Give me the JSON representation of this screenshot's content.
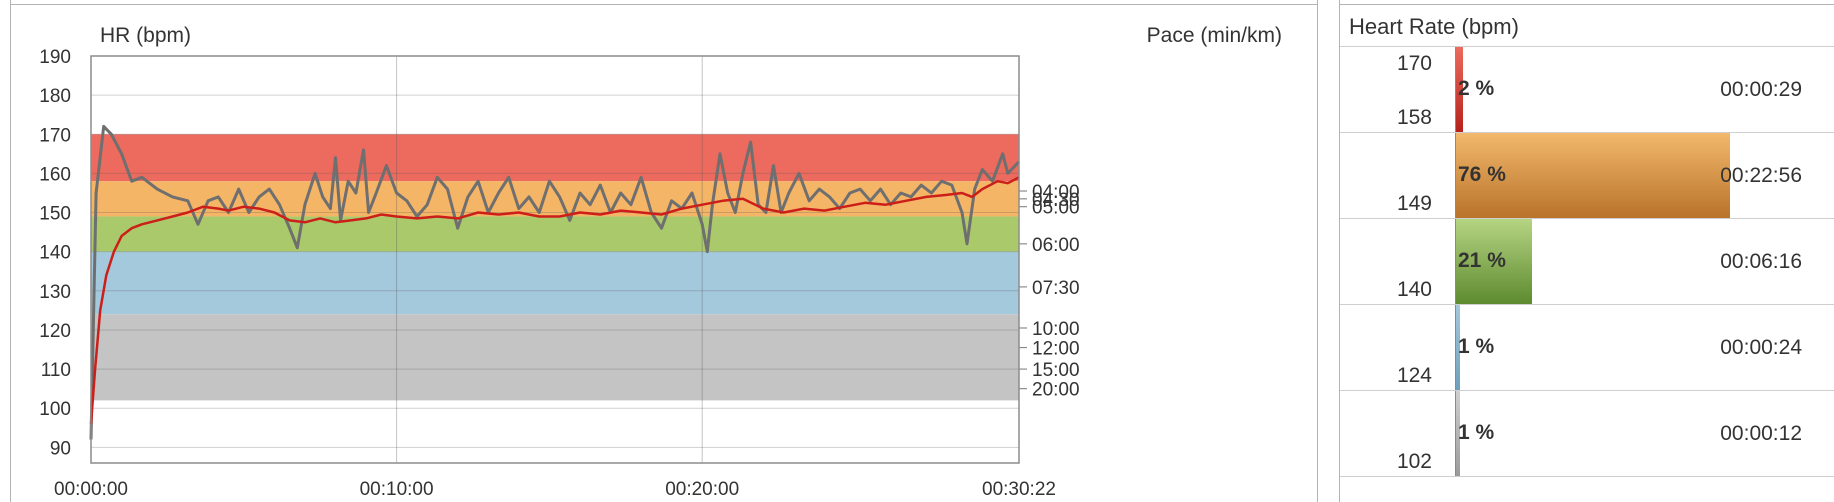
{
  "chart_data": {
    "type": "line",
    "left_axis_label": "HR (bpm)",
    "right_axis_label": "Pace (min/km)",
    "y_ticks": [
      190,
      180,
      170,
      160,
      150,
      140,
      130,
      120,
      110,
      100,
      90
    ],
    "ylim": [
      86,
      190
    ],
    "x_ticks": [
      "00:00:00",
      "00:10:00",
      "00:20:00",
      "00:30:22"
    ],
    "x_tick_seconds": [
      0,
      600,
      1200,
      1822
    ],
    "xlim_seconds": [
      0,
      1822
    ],
    "pace_ticks": [
      {
        "label": "04:00",
        "hr": 155.5
      },
      {
        "label": "04:30",
        "hr": 153.5
      },
      {
        "label": "05:00",
        "hr": 151.5
      },
      {
        "label": "06:00",
        "hr": 142.0
      },
      {
        "label": "07:30",
        "hr": 131.0
      },
      {
        "label": "10:00",
        "hr": 120.5
      },
      {
        "label": "12:00",
        "hr": 115.5
      },
      {
        "label": "15:00",
        "hr": 110.0
      },
      {
        "label": "20:00",
        "hr": 105.0
      }
    ],
    "zones": [
      {
        "from": 158,
        "to": 170,
        "color": "#ec6a5e"
      },
      {
        "from": 149,
        "to": 158,
        "color": "#f5b566"
      },
      {
        "from": 140,
        "to": 149,
        "color": "#a9c96a"
      },
      {
        "from": 124,
        "to": 140,
        "color": "#a4c8dc"
      },
      {
        "from": 102,
        "to": 124,
        "color": "#c4c4c4"
      }
    ],
    "series": [
      {
        "color": "#6f6f6f",
        "points": [
          [
            0,
            92
          ],
          [
            10,
            155
          ],
          [
            25,
            172
          ],
          [
            40,
            170
          ],
          [
            60,
            165
          ],
          [
            80,
            158
          ],
          [
            100,
            159
          ],
          [
            130,
            156
          ],
          [
            160,
            154
          ],
          [
            190,
            153
          ],
          [
            210,
            147
          ],
          [
            230,
            153
          ],
          [
            250,
            154
          ],
          [
            270,
            150
          ],
          [
            290,
            156
          ],
          [
            310,
            150
          ],
          [
            330,
            154
          ],
          [
            350,
            156
          ],
          [
            370,
            152
          ],
          [
            390,
            146
          ],
          [
            405,
            141
          ],
          [
            420,
            152
          ],
          [
            440,
            160
          ],
          [
            455,
            154
          ],
          [
            470,
            151
          ],
          [
            480,
            164
          ],
          [
            490,
            148
          ],
          [
            505,
            158
          ],
          [
            520,
            155
          ],
          [
            535,
            166
          ],
          [
            545,
            150
          ],
          [
            560,
            155
          ],
          [
            580,
            162
          ],
          [
            600,
            155
          ],
          [
            620,
            153
          ],
          [
            640,
            149
          ],
          [
            660,
            152
          ],
          [
            680,
            159
          ],
          [
            700,
            156
          ],
          [
            720,
            146
          ],
          [
            740,
            154
          ],
          [
            760,
            158
          ],
          [
            780,
            150
          ],
          [
            800,
            155
          ],
          [
            820,
            159
          ],
          [
            840,
            151
          ],
          [
            860,
            154
          ],
          [
            880,
            150
          ],
          [
            900,
            158
          ],
          [
            920,
            154
          ],
          [
            940,
            148
          ],
          [
            960,
            155
          ],
          [
            980,
            152
          ],
          [
            1000,
            157
          ],
          [
            1020,
            150
          ],
          [
            1040,
            155
          ],
          [
            1060,
            152
          ],
          [
            1080,
            159
          ],
          [
            1100,
            150
          ],
          [
            1120,
            146
          ],
          [
            1140,
            153
          ],
          [
            1160,
            151
          ],
          [
            1180,
            155
          ],
          [
            1200,
            147
          ],
          [
            1210,
            140
          ],
          [
            1220,
            152
          ],
          [
            1235,
            165
          ],
          [
            1250,
            155
          ],
          [
            1265,
            150
          ],
          [
            1280,
            160
          ],
          [
            1295,
            168
          ],
          [
            1310,
            152
          ],
          [
            1325,
            150
          ],
          [
            1340,
            162
          ],
          [
            1355,
            150
          ],
          [
            1370,
            155
          ],
          [
            1390,
            160
          ],
          [
            1410,
            153
          ],
          [
            1430,
            156
          ],
          [
            1450,
            154
          ],
          [
            1470,
            151
          ],
          [
            1490,
            155
          ],
          [
            1510,
            156
          ],
          [
            1530,
            153
          ],
          [
            1550,
            156
          ],
          [
            1570,
            152
          ],
          [
            1590,
            155
          ],
          [
            1610,
            154
          ],
          [
            1630,
            157
          ],
          [
            1650,
            155
          ],
          [
            1670,
            158
          ],
          [
            1690,
            157
          ],
          [
            1710,
            150
          ],
          [
            1720,
            142
          ],
          [
            1735,
            156
          ],
          [
            1750,
            161
          ],
          [
            1770,
            158
          ],
          [
            1790,
            165
          ],
          [
            1800,
            160
          ],
          [
            1822,
            163
          ]
        ]
      },
      {
        "color": "#cc1f1a",
        "points": [
          [
            0,
            96
          ],
          [
            8,
            110
          ],
          [
            18,
            125
          ],
          [
            30,
            134
          ],
          [
            45,
            140
          ],
          [
            60,
            144
          ],
          [
            80,
            146
          ],
          [
            100,
            147
          ],
          [
            130,
            148
          ],
          [
            160,
            149
          ],
          [
            190,
            150
          ],
          [
            220,
            151.5
          ],
          [
            250,
            151
          ],
          [
            270,
            150.5
          ],
          [
            300,
            151.5
          ],
          [
            330,
            151
          ],
          [
            360,
            150
          ],
          [
            390,
            148
          ],
          [
            420,
            147.5
          ],
          [
            450,
            148.5
          ],
          [
            480,
            147.5
          ],
          [
            510,
            148
          ],
          [
            540,
            148.5
          ],
          [
            570,
            149.5
          ],
          [
            600,
            149
          ],
          [
            640,
            148.5
          ],
          [
            680,
            149
          ],
          [
            720,
            148.5
          ],
          [
            760,
            150
          ],
          [
            800,
            149.5
          ],
          [
            840,
            150
          ],
          [
            880,
            149
          ],
          [
            920,
            149
          ],
          [
            960,
            150
          ],
          [
            1000,
            149.5
          ],
          [
            1040,
            150.5
          ],
          [
            1080,
            150
          ],
          [
            1120,
            149.5
          ],
          [
            1160,
            151
          ],
          [
            1200,
            152
          ],
          [
            1240,
            153
          ],
          [
            1280,
            153.5
          ],
          [
            1320,
            151
          ],
          [
            1360,
            150
          ],
          [
            1400,
            151
          ],
          [
            1440,
            150.5
          ],
          [
            1480,
            151.5
          ],
          [
            1520,
            152.5
          ],
          [
            1560,
            152
          ],
          [
            1600,
            153
          ],
          [
            1640,
            154
          ],
          [
            1680,
            154.5
          ],
          [
            1710,
            155
          ],
          [
            1730,
            154
          ],
          [
            1750,
            156
          ],
          [
            1780,
            158
          ],
          [
            1800,
            157.5
          ],
          [
            1822,
            159
          ]
        ]
      }
    ]
  },
  "zones_panel": {
    "title": "Heart Rate (bpm)",
    "rows": [
      {
        "upper": "170",
        "lower": "158",
        "percent_label": "2 %",
        "percent": 2,
        "time": "00:00:29",
        "bar_color_top": "#ec6a5e",
        "bar_color_bottom": "#b5201a"
      },
      {
        "upper": "",
        "lower": "149",
        "percent_label": "76 %",
        "percent": 76,
        "time": "00:22:56",
        "bar_color_top": "#f2b86c",
        "bar_color_bottom": "#b8722a"
      },
      {
        "upper": "",
        "lower": "140",
        "percent_label": "21 %",
        "percent": 21,
        "time": "00:06:16",
        "bar_color_top": "#b6d483",
        "bar_color_bottom": "#5c8a2e"
      },
      {
        "upper": "",
        "lower": "124",
        "percent_label": "1 %",
        "percent": 1,
        "time": "00:00:24",
        "bar_color_top": "#a4c8dc",
        "bar_color_bottom": "#6d9fbd"
      },
      {
        "upper": "",
        "lower": "102",
        "percent_label": "1 %",
        "percent": 1,
        "time": "00:00:12",
        "bar_color_top": "#cfcfcf",
        "bar_color_bottom": "#9a9a9a"
      }
    ]
  }
}
